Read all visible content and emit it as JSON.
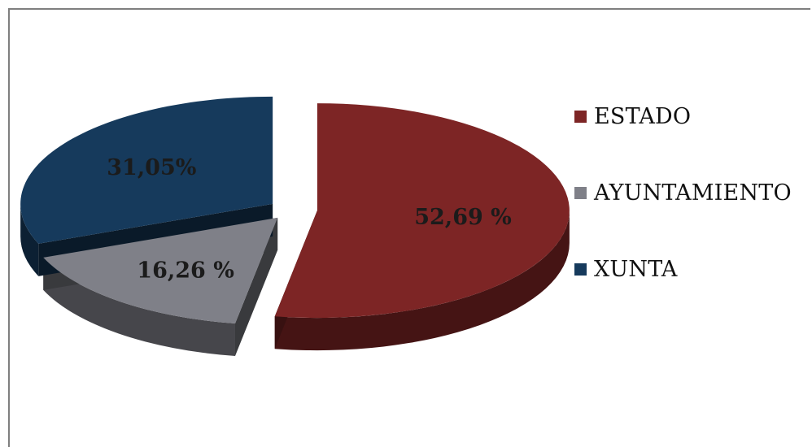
{
  "chart_data": {
    "type": "pie",
    "categories": [
      "ESTADO",
      "AYUNTAMIENTO",
      "XUNTA"
    ],
    "values": [
      52.69,
      16.26,
      31.05
    ],
    "data_labels": [
      "52,69 %",
      "16,26 %",
      "31,05%"
    ],
    "colors": [
      "#7d2525",
      "#7f8088",
      "#163a5c"
    ],
    "exploded": true,
    "three_d": true,
    "legend": "right"
  }
}
